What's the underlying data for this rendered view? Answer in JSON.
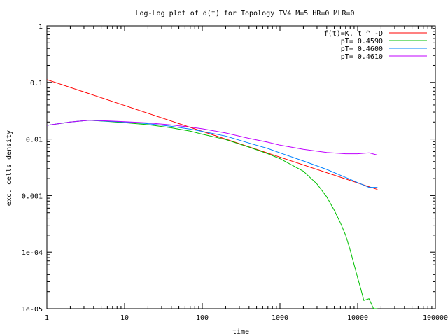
{
  "chart_data": {
    "type": "line",
    "title": "Log-Log plot of d(t) for Topology TV4 M=5 HR=0 MLR=0",
    "xlabel": "time",
    "ylabel": "exc. cells density",
    "x_scale": "log",
    "y_scale": "log",
    "xlim": [
      1,
      100000
    ],
    "ylim": [
      1e-05,
      1
    ],
    "x_ticks": [
      {
        "value": 1,
        "label": "1"
      },
      {
        "value": 10,
        "label": "10"
      },
      {
        "value": 100,
        "label": "100"
      },
      {
        "value": 1000,
        "label": "1000"
      },
      {
        "value": 10000,
        "label": "10000"
      },
      {
        "value": 100000,
        "label": "100000"
      }
    ],
    "y_ticks": [
      {
        "value": 1,
        "label": "1"
      },
      {
        "value": 0.1,
        "label": "0.1"
      },
      {
        "value": 0.01,
        "label": "0.01"
      },
      {
        "value": 0.001,
        "label": "0.001"
      },
      {
        "value": 0.0001,
        "label": "1e-04"
      },
      {
        "value": 1e-05,
        "label": "1e-05"
      }
    ],
    "grid": false,
    "legend": "top-right",
    "series": [
      {
        "name": "f(t)=K. t ^ -D",
        "color": "#ff0000",
        "x": [
          1,
          18000
        ],
        "y": [
          0.112,
          0.00128
        ]
      },
      {
        "name": "pT= 0.4590",
        "color": "#00c000",
        "x": [
          1,
          2,
          3.5,
          6,
          10,
          20,
          40,
          70,
          100,
          200,
          400,
          700,
          1000,
          2000,
          3000,
          4000,
          5000,
          6000,
          7000,
          8000,
          9000,
          10000,
          11000,
          12000,
          14000,
          16000,
          18000
        ],
        "y": [
          0.0175,
          0.02,
          0.0215,
          0.0205,
          0.0195,
          0.018,
          0.0158,
          0.0138,
          0.0122,
          0.0098,
          0.0072,
          0.0055,
          0.0045,
          0.0027,
          0.0016,
          0.00095,
          0.00055,
          0.00033,
          0.0002,
          0.00011,
          6e-05,
          3.5e-05,
          2.2e-05,
          1.4e-05,
          1.5e-05,
          1e-05,
          1e-05
        ]
      },
      {
        "name": "pT= 0.4600",
        "color": "#0080ff",
        "x": [
          1,
          2,
          3.5,
          6,
          10,
          20,
          40,
          70,
          100,
          200,
          400,
          700,
          1000,
          2000,
          4000,
          7000,
          10000,
          14000,
          18000
        ],
        "y": [
          0.0175,
          0.02,
          0.0215,
          0.0207,
          0.02,
          0.0187,
          0.0168,
          0.015,
          0.0137,
          0.0113,
          0.0085,
          0.0068,
          0.0057,
          0.0041,
          0.0029,
          0.0021,
          0.0017,
          0.0014,
          0.0014
        ]
      },
      {
        "name": "pT= 0.4610",
        "color": "#c000ff",
        "x": [
          1,
          2,
          3.5,
          6,
          10,
          20,
          40,
          70,
          100,
          200,
          400,
          700,
          1000,
          2000,
          4000,
          7000,
          10000,
          14000,
          18000
        ],
        "y": [
          0.0175,
          0.02,
          0.0215,
          0.021,
          0.0203,
          0.0193,
          0.0178,
          0.0163,
          0.0152,
          0.0128,
          0.0103,
          0.0088,
          0.0078,
          0.0066,
          0.0058,
          0.0055,
          0.0055,
          0.0057,
          0.0052
        ]
      }
    ]
  }
}
